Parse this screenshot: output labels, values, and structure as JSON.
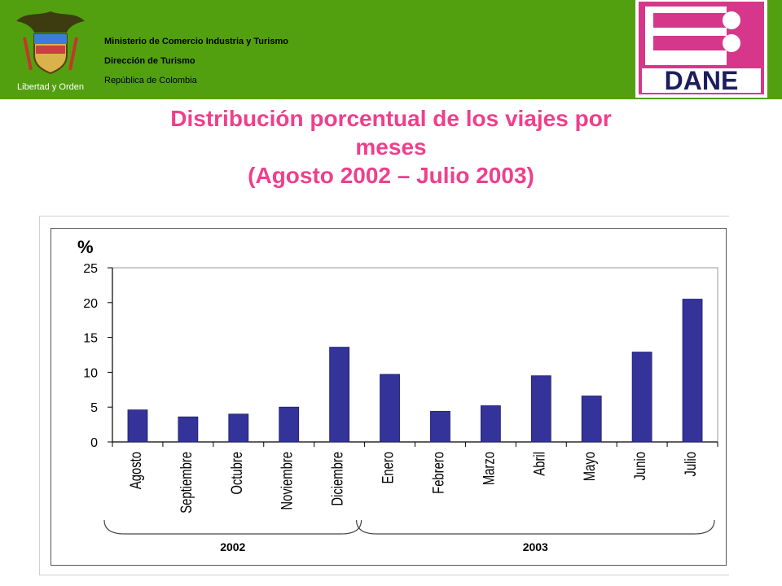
{
  "header": {
    "ministry_lines": [
      "Ministerio de Comercio Industria y Turismo",
      "Dirección de Turismo",
      "República de Colombia"
    ],
    "coat_caption": "Libertad y Orden",
    "dane_logo_text": "DANE",
    "bg_color": "#52a00f"
  },
  "title": {
    "line1": "Distribución porcentual de los viajes por",
    "line2": "meses",
    "line3": "(Agosto 2002 – Julio 2003)",
    "color": "#ef3f8c"
  },
  "chart_data": {
    "type": "bar",
    "ylabel": "%",
    "ylim": [
      0,
      25
    ],
    "yticks": [
      0,
      5,
      10,
      15,
      20,
      25
    ],
    "categories": [
      "Agosto",
      "Septiembre",
      "Octubre",
      "Noviembre",
      "Diciembre",
      "Enero",
      "Febrero",
      "Marzo",
      "Abril",
      "Mayo",
      "Junio",
      "Julio"
    ],
    "values": [
      4.6,
      3.6,
      4.0,
      5.0,
      13.6,
      9.7,
      4.4,
      5.2,
      9.5,
      6.6,
      12.9,
      20.5
    ],
    "groups": [
      {
        "label": "2002",
        "from": 0,
        "to": 4
      },
      {
        "label": "2003",
        "from": 5,
        "to": 11
      }
    ],
    "bar_color": "#33339a",
    "grid": false
  }
}
